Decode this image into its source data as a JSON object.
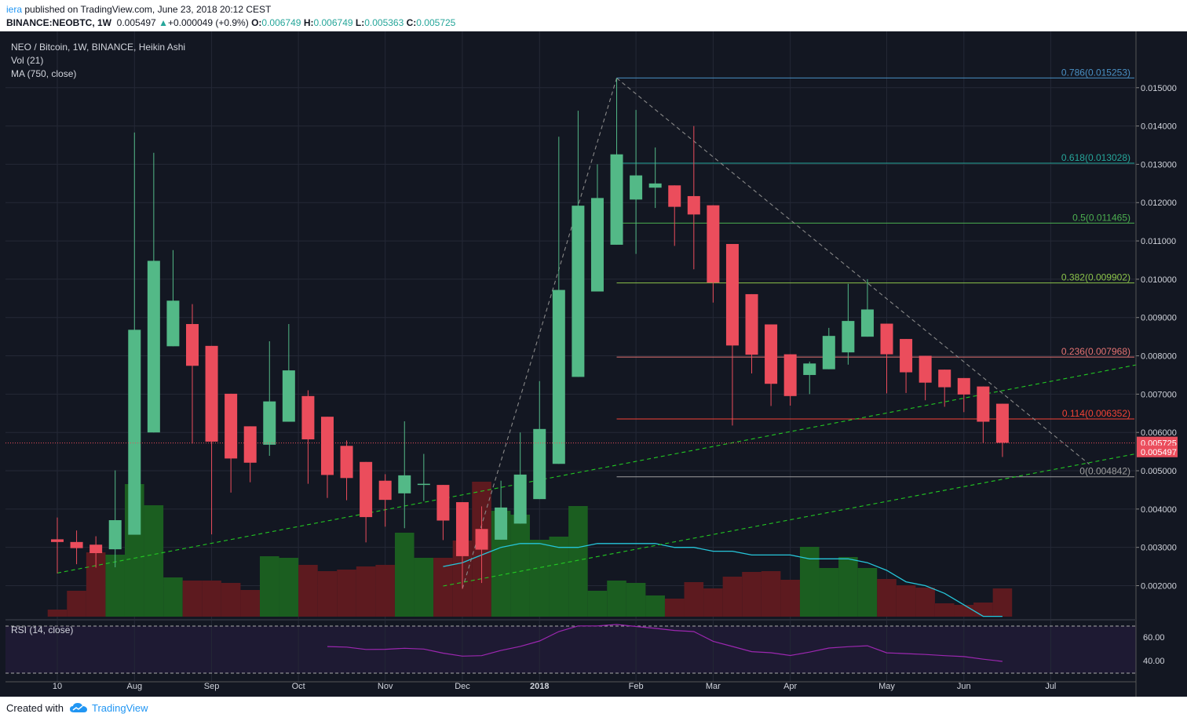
{
  "header": {
    "user": "iera",
    "published_text": " published on TradingView.com, June 23, 2018 20:12 CEST",
    "symbol": "BINANCE:NEOBTC, 1W",
    "last": "0.005497",
    "arrow": "▲",
    "change": "+0.000049 (+0.9%)",
    "o_label": "O:",
    "o_value": "0.006749",
    "h_label": "H:",
    "h_value": "0.006749",
    "l_label": "L:",
    "l_value": "0.005363",
    "c_label": "C:",
    "c_value": "0.005725"
  },
  "legend": {
    "title": "NEO / Bitcoin, 1W, BINANCE, Heikin Ashi",
    "vol": "Vol (21)",
    "ma": "MA (750, close)",
    "rsi": "RSI (14, close)"
  },
  "footer": {
    "created_with": "Created with",
    "brand": "TradingView"
  },
  "colors": {
    "background": "#131722",
    "up": "#53b987",
    "down": "#eb4d5c",
    "vol_up": "#1b5e20",
    "vol_down": "#5d1a1f",
    "ma_line": "#26c6da",
    "rsi_line": "#9c27b0",
    "trendline": "#22c822",
    "fib_0786": "#4a90c4",
    "fib_0618": "#26a69a",
    "fib_05": "#4caf50",
    "fib_0382": "#8bc34a",
    "fib_0236": "#e57373",
    "fib_0114": "#f44336",
    "fib_0": "#9e9e9e"
  },
  "chart_data": {
    "type": "candlestick",
    "chart_style": "Heikin Ashi",
    "interval": "1W",
    "x_tick_labels": [
      "10",
      "Aug",
      "Sep",
      "Oct",
      "Nov",
      "Dec",
      "2018",
      "Feb",
      "Mar",
      "Apr",
      "May",
      "Jun",
      "Jul"
    ],
    "y_tick_labels": [
      "0.015000",
      "0.014000",
      "0.013000",
      "0.012000",
      "0.011000",
      "0.010000",
      "0.009000",
      "0.008000",
      "0.007000",
      "0.006000",
      "0.005000",
      "0.004000",
      "0.003000",
      "0.002000"
    ],
    "ylim": [
      0.00115,
      0.01647
    ],
    "price_labels": [
      "0.005725",
      "0.005497"
    ],
    "candles": [
      {
        "o": 0.00321,
        "h": 0.00378,
        "l": 0.00232,
        "c": 0.00314
      },
      {
        "o": 0.00314,
        "h": 0.00344,
        "l": 0.00256,
        "c": 0.00298
      },
      {
        "o": 0.00307,
        "h": 0.00329,
        "l": 0.00247,
        "c": 0.00285
      },
      {
        "o": 0.00295,
        "h": 0.00501,
        "l": 0.00248,
        "c": 0.00371
      },
      {
        "o": 0.00333,
        "h": 0.01383,
        "l": 0.00333,
        "c": 0.00868
      },
      {
        "o": 0.006,
        "h": 0.0133,
        "l": 0.006,
        "c": 0.01048
      },
      {
        "o": 0.00825,
        "h": 0.01076,
        "l": 0.00825,
        "c": 0.00944
      },
      {
        "o": 0.00883,
        "h": 0.00935,
        "l": 0.00571,
        "c": 0.00774
      },
      {
        "o": 0.00826,
        "h": 0.00826,
        "l": 0.00334,
        "c": 0.00576
      },
      {
        "o": 0.00701,
        "h": 0.00701,
        "l": 0.00443,
        "c": 0.00532
      },
      {
        "o": 0.00616,
        "h": 0.00616,
        "l": 0.0047,
        "c": 0.00521
      },
      {
        "o": 0.00568,
        "h": 0.00838,
        "l": 0.00539,
        "c": 0.00681
      },
      {
        "o": 0.00628,
        "h": 0.00883,
        "l": 0.00628,
        "c": 0.00762
      },
      {
        "o": 0.00695,
        "h": 0.0071,
        "l": 0.00466,
        "c": 0.00582
      },
      {
        "o": 0.00641,
        "h": 0.00641,
        "l": 0.00429,
        "c": 0.00489
      },
      {
        "o": 0.00565,
        "h": 0.00579,
        "l": 0.00423,
        "c": 0.00481
      },
      {
        "o": 0.00523,
        "h": 0.00523,
        "l": 0.00313,
        "c": 0.00379
      },
      {
        "o": 0.00474,
        "h": 0.00491,
        "l": 0.00354,
        "c": 0.00424
      },
      {
        "o": 0.00441,
        "h": 0.00629,
        "l": 0.0035,
        "c": 0.00488
      },
      {
        "o": 0.00466,
        "h": 0.00544,
        "l": 0.00421,
        "c": 0.00466
      },
      {
        "o": 0.00463,
        "h": 0.00463,
        "l": 0.00319,
        "c": 0.0037
      },
      {
        "o": 0.00418,
        "h": 0.00418,
        "l": 0.00192,
        "c": 0.00277
      },
      {
        "o": 0.00348,
        "h": 0.00407,
        "l": 0.00207,
        "c": 0.00294
      },
      {
        "o": 0.0032,
        "h": 0.00474,
        "l": 0.0032,
        "c": 0.00404
      },
      {
        "o": 0.00362,
        "h": 0.006,
        "l": 0.00362,
        "c": 0.0049
      },
      {
        "o": 0.00426,
        "h": 0.00734,
        "l": 0.00426,
        "c": 0.00609
      },
      {
        "o": 0.00518,
        "h": 0.01372,
        "l": 0.00518,
        "c": 0.00972
      },
      {
        "o": 0.00745,
        "h": 0.0144,
        "l": 0.00745,
        "c": 0.01192
      },
      {
        "o": 0.00968,
        "h": 0.013,
        "l": 0.00968,
        "c": 0.01212
      },
      {
        "o": 0.0109,
        "h": 0.01525,
        "l": 0.0109,
        "c": 0.01326
      },
      {
        "o": 0.01208,
        "h": 0.01442,
        "l": 0.01066,
        "c": 0.01271
      },
      {
        "o": 0.01239,
        "h": 0.01344,
        "l": 0.01186,
        "c": 0.0125
      },
      {
        "o": 0.01245,
        "h": 0.01245,
        "l": 0.01087,
        "c": 0.01189
      },
      {
        "o": 0.01217,
        "h": 0.014,
        "l": 0.01026,
        "c": 0.01169
      },
      {
        "o": 0.01193,
        "h": 0.01193,
        "l": 0.00939,
        "c": 0.00991
      },
      {
        "o": 0.01092,
        "h": 0.01092,
        "l": 0.00618,
        "c": 0.00827
      },
      {
        "o": 0.00961,
        "h": 0.00961,
        "l": 0.00754,
        "c": 0.00803
      },
      {
        "o": 0.00882,
        "h": 0.00882,
        "l": 0.00669,
        "c": 0.00727
      },
      {
        "o": 0.00804,
        "h": 0.00804,
        "l": 0.0067,
        "c": 0.00695
      },
      {
        "o": 0.0075,
        "h": 0.00785,
        "l": 0.007,
        "c": 0.0078
      },
      {
        "o": 0.00765,
        "h": 0.00873,
        "l": 0.00765,
        "c": 0.00852
      },
      {
        "o": 0.00809,
        "h": 0.00988,
        "l": 0.00777,
        "c": 0.00891
      },
      {
        "o": 0.0085,
        "h": 0.01,
        "l": 0.0085,
        "c": 0.00921
      },
      {
        "o": 0.00884,
        "h": 0.00884,
        "l": 0.00702,
        "c": 0.00804
      },
      {
        "o": 0.00844,
        "h": 0.00844,
        "l": 0.00703,
        "c": 0.00757
      },
      {
        "o": 0.008,
        "h": 0.008,
        "l": 0.00684,
        "c": 0.0073
      },
      {
        "o": 0.00764,
        "h": 0.00764,
        "l": 0.00667,
        "c": 0.00718
      },
      {
        "o": 0.00742,
        "h": 0.00742,
        "l": 0.00653,
        "c": 0.00699
      },
      {
        "o": 0.0072,
        "h": 0.0072,
        "l": 0.00572,
        "c": 0.00628
      },
      {
        "o": 0.00675,
        "h": 0.00675,
        "l": 0.00536,
        "c": 0.00573
      }
    ],
    "volume": [
      {
        "v": 0.09,
        "up": false
      },
      {
        "v": 0.33,
        "up": false
      },
      {
        "v": 0.82,
        "up": false
      },
      {
        "v": 0.79,
        "up": true
      },
      {
        "v": 1.69,
        "up": true
      },
      {
        "v": 1.42,
        "up": true
      },
      {
        "v": 0.5,
        "up": true
      },
      {
        "v": 0.46,
        "up": false
      },
      {
        "v": 0.46,
        "up": false
      },
      {
        "v": 0.43,
        "up": false
      },
      {
        "v": 0.34,
        "up": false
      },
      {
        "v": 0.77,
        "up": true
      },
      {
        "v": 0.75,
        "up": true
      },
      {
        "v": 0.66,
        "up": false
      },
      {
        "v": 0.58,
        "up": false
      },
      {
        "v": 0.6,
        "up": false
      },
      {
        "v": 0.64,
        "up": false
      },
      {
        "v": 0.66,
        "up": false
      },
      {
        "v": 1.07,
        "up": true
      },
      {
        "v": 0.75,
        "up": true
      },
      {
        "v": 0.75,
        "up": false
      },
      {
        "v": 0.97,
        "up": false
      },
      {
        "v": 1.72,
        "up": false
      },
      {
        "v": 1.35,
        "up": true
      },
      {
        "v": 1.3,
        "up": true
      },
      {
        "v": 0.98,
        "up": true
      },
      {
        "v": 1.02,
        "up": true
      },
      {
        "v": 1.41,
        "up": true
      },
      {
        "v": 0.33,
        "up": true
      },
      {
        "v": 0.46,
        "up": true
      },
      {
        "v": 0.43,
        "up": true
      },
      {
        "v": 0.27,
        "up": true
      },
      {
        "v": 0.23,
        "up": false
      },
      {
        "v": 0.44,
        "up": false
      },
      {
        "v": 0.36,
        "up": false
      },
      {
        "v": 0.51,
        "up": false
      },
      {
        "v": 0.57,
        "up": false
      },
      {
        "v": 0.58,
        "up": false
      },
      {
        "v": 0.47,
        "up": false
      },
      {
        "v": 0.89,
        "up": true
      },
      {
        "v": 0.62,
        "up": true
      },
      {
        "v": 0.76,
        "up": true
      },
      {
        "v": 0.62,
        "up": true
      },
      {
        "v": 0.48,
        "up": false
      },
      {
        "v": 0.4,
        "up": false
      },
      {
        "v": 0.37,
        "up": false
      },
      {
        "v": 0.17,
        "up": false
      },
      {
        "v": 0.15,
        "up": false
      },
      {
        "v": 0.18,
        "up": false
      },
      {
        "v": 0.36,
        "up": false
      }
    ],
    "ma_750": [
      null,
      null,
      null,
      null,
      null,
      null,
      null,
      null,
      null,
      null,
      null,
      null,
      null,
      null,
      null,
      null,
      null,
      null,
      null,
      null,
      0.0025,
      0.0026,
      0.0028,
      0.003,
      0.0031,
      0.0031,
      0.003,
      0.003,
      0.0031,
      0.0031,
      0.0031,
      0.0031,
      0.003,
      0.003,
      0.0029,
      0.0029,
      0.0028,
      0.0028,
      0.0028,
      0.0027,
      0.0027,
      0.0027,
      0.0026,
      0.0024,
      0.0021,
      0.002,
      0.0018,
      0.0015,
      0.0012,
      0.0012
    ],
    "rsi_14": [
      null,
      null,
      null,
      null,
      null,
      null,
      null,
      null,
      null,
      null,
      null,
      null,
      null,
      null,
      51.9,
      51.5,
      49.5,
      49.6,
      50.5,
      49.8,
      46.3,
      43.8,
      44.2,
      48.6,
      52.1,
      56.7,
      64.7,
      69.5,
      69.5,
      70.7,
      69.0,
      67.4,
      65.6,
      64.7,
      56.4,
      52.0,
      47.6,
      46.7,
      44.3,
      47.2,
      50.7,
      51.8,
      52.6,
      46.6,
      45.9,
      45.2,
      44.2,
      43.4,
      41.2,
      39.3
    ],
    "rsi_ticks": [
      "60.00",
      "40.00"
    ],
    "fibonacci": [
      {
        "label": "0.786(0.015253)",
        "price": 0.015253,
        "color": "#4a90c4"
      },
      {
        "label": "0.618(0.013028)",
        "price": 0.013028,
        "color": "#26a69a"
      },
      {
        "label": "0.5(0.011465)",
        "price": 0.011465,
        "color": "#4caf50"
      },
      {
        "label": "0.382(0.009902)",
        "price": 0.009902,
        "color": "#8bc34a"
      },
      {
        "label": "0.236(0.007968)",
        "price": 0.007968,
        "color": "#e57373"
      },
      {
        "label": "0.114(0.006352)",
        "price": 0.006352,
        "color": "#f44336"
      },
      {
        "label": "0(0.004842)",
        "price": 0.004842,
        "color": "#9e9e9e"
      }
    ],
    "trendlines": [
      {
        "style": "dashed",
        "color": "#22c822",
        "from": {
          "week": 0,
          "price": 0.00233
        },
        "to": {
          "week": 56.1,
          "price": 0.00778
        }
      },
      {
        "style": "dashed",
        "color": "#22c822",
        "from": {
          "week": 20,
          "price": 0.00199
        },
        "to": {
          "week": 56.1,
          "price": 0.00546
        }
      },
      {
        "style": "dashed",
        "color": "#888888",
        "from": {
          "week": 21,
          "price": 0.00192
        },
        "to": {
          "week": 29,
          "price": 0.01525
        }
      },
      {
        "style": "dashed",
        "color": "#888888",
        "from": {
          "week": 29,
          "price": 0.01525
        },
        "to": {
          "week": 53.5,
          "price": 0.00517
        }
      }
    ]
  }
}
